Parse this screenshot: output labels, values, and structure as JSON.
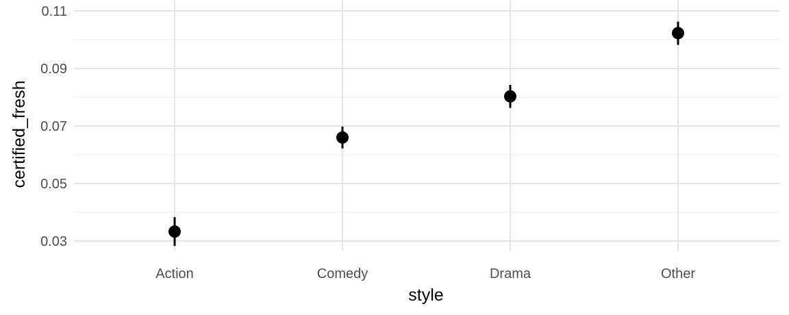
{
  "chart_data": {
    "type": "pointrange",
    "categories": [
      "Action",
      "Comedy",
      "Drama",
      "Other"
    ],
    "series": [
      {
        "values": [
          0.0333,
          0.066,
          0.0803,
          0.1023
        ],
        "lower": [
          0.0283,
          0.0622,
          0.0763,
          0.0982
        ],
        "upper": [
          0.0383,
          0.0698,
          0.0843,
          0.1063
        ]
      }
    ],
    "xlabel": "style",
    "ylabel": "certified_fresh",
    "ylim": [
      0.026,
      0.11
    ],
    "yticks": [
      0.03,
      0.05,
      0.07,
      0.09,
      0.11
    ],
    "ytick_labels": [
      "0.03",
      "0.05",
      "0.07",
      "0.09",
      "0.11"
    ],
    "grid": true,
    "colors": {
      "grid_major": "#e6e6e6",
      "grid_minor": "#f0f0f0",
      "point": "#000000",
      "tick_text": "#4d4d4d"
    }
  }
}
